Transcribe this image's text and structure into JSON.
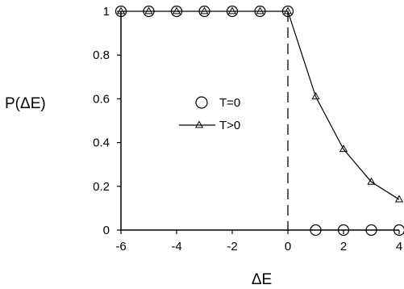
{
  "chart_data": {
    "type": "scatter",
    "xlabel": "ΔE",
    "ylabel": "P(ΔE)",
    "xlim": [
      -6,
      4
    ],
    "ylim": [
      0,
      1
    ],
    "xticks": [
      -6,
      -4,
      -2,
      0,
      2,
      4
    ],
    "yticks": [
      0,
      0.2,
      0.4,
      0.6,
      0.8,
      1
    ],
    "ytick_labels": [
      "0",
      "0.2",
      "0.4",
      "0.6",
      "0.8",
      "1"
    ],
    "grid": false,
    "legend_position": "center",
    "reference_line": {
      "x": 0,
      "style": "dashed"
    },
    "series": [
      {
        "name": "T=0",
        "marker": "circle",
        "line": false,
        "x": [
          -6,
          -5,
          -4,
          -3,
          -2,
          -1,
          0,
          1,
          2,
          3,
          4
        ],
        "y": [
          1,
          1,
          1,
          1,
          1,
          1,
          1,
          0,
          0,
          0,
          0
        ]
      },
      {
        "name": "T>0",
        "marker": "triangle",
        "line": true,
        "x": [
          -6,
          -5,
          -4,
          -3,
          -2,
          -1,
          0,
          1,
          2,
          3,
          4
        ],
        "y": [
          1,
          1,
          1,
          1,
          1,
          1,
          1,
          0.61,
          0.37,
          0.22,
          0.14
        ]
      }
    ]
  }
}
